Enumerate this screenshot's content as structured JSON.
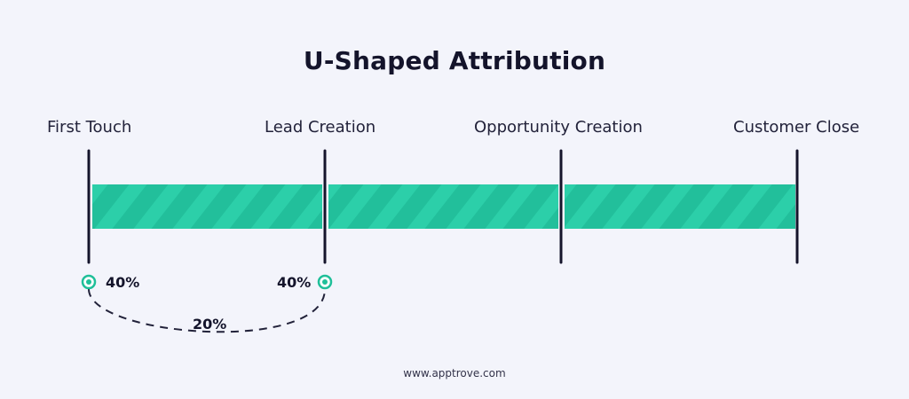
{
  "title": "U-Shaped Attribution",
  "stages": [
    "First Touch",
    "Lead Creation",
    "Opportunity Creation",
    "Customer Close"
  ],
  "credit": {
    "first_touch": "40%",
    "lead_creation": "40%",
    "middle": "20%"
  },
  "footer": "www.apptrove.com",
  "colors": {
    "background": "#f3f4fb",
    "bar": "#22bf9b",
    "stripe": "#2ccfa9",
    "line": "#14142b",
    "marker": "#1fbf99"
  }
}
